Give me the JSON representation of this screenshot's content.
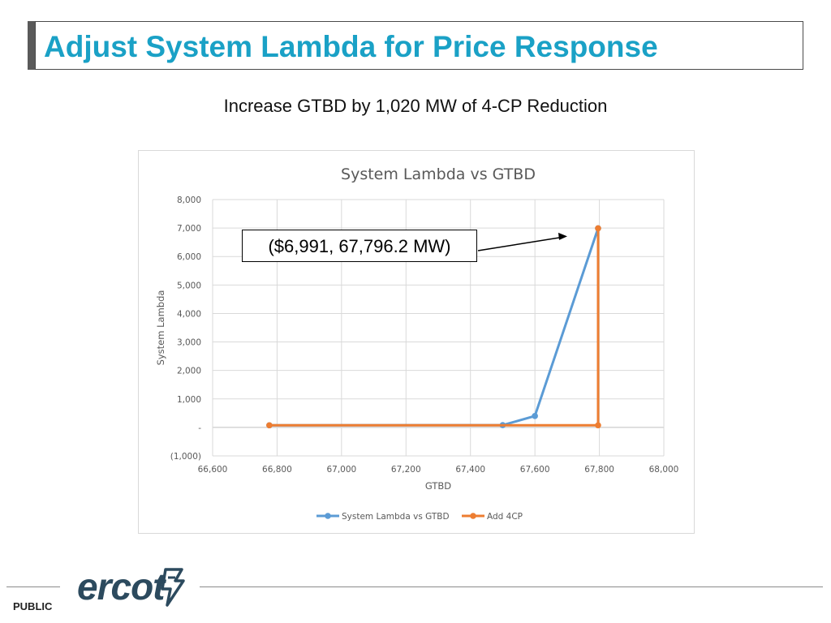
{
  "slide": {
    "title": "Adjust System Lambda for Price Response",
    "subtitle": "Increase GTBD by 1,020 MW of 4-CP Reduction",
    "annotation": "($6,991, 67,796.2 MW)",
    "footer_label": "PUBLIC",
    "logo_text": "ercot"
  },
  "colors": {
    "title": "#1aa1c6",
    "series_blue": "#5b9bd5",
    "series_orange": "#ed7d31",
    "logo": "#2c4a5e"
  },
  "chart_data": {
    "type": "line",
    "title": "System Lambda vs GTBD",
    "xlabel": "GTBD",
    "ylabel": "System Lambda",
    "xlim": [
      66600,
      68000
    ],
    "ylim": [
      -1000,
      8000
    ],
    "x_ticks": [
      {
        "value": 66600,
        "label": "66,600"
      },
      {
        "value": 66800,
        "label": "66,800"
      },
      {
        "value": 67000,
        "label": "67,000"
      },
      {
        "value": 67200,
        "label": "67,200"
      },
      {
        "value": 67400,
        "label": "67,400"
      },
      {
        "value": 67600,
        "label": "67,600"
      },
      {
        "value": 67800,
        "label": "67,800"
      },
      {
        "value": 68000,
        "label": "68,000"
      }
    ],
    "y_ticks": [
      {
        "value": 8000,
        "label": "8,000"
      },
      {
        "value": 7000,
        "label": "7,000"
      },
      {
        "value": 6000,
        "label": "6,000"
      },
      {
        "value": 5000,
        "label": "5,000"
      },
      {
        "value": 4000,
        "label": "4,000"
      },
      {
        "value": 3000,
        "label": "3,000"
      },
      {
        "value": 2000,
        "label": "2,000"
      },
      {
        "value": 1000,
        "label": "1,000"
      },
      {
        "value": 0,
        "label": "-"
      },
      {
        "value": -1000,
        "label": "(1,000)"
      }
    ],
    "grid": true,
    "legend_position": "bottom",
    "series": [
      {
        "name": "System Lambda vs GTBD",
        "color": "#5b9bd5",
        "points": [
          [
            66776,
            75
          ],
          [
            67500,
            80
          ],
          [
            67600,
            400
          ],
          [
            67796,
            6991
          ]
        ]
      },
      {
        "name": "Add 4CP",
        "color": "#ed7d31",
        "points": [
          [
            66776,
            75
          ],
          [
            67796,
            75
          ],
          [
            67796,
            6991
          ]
        ]
      }
    ]
  }
}
